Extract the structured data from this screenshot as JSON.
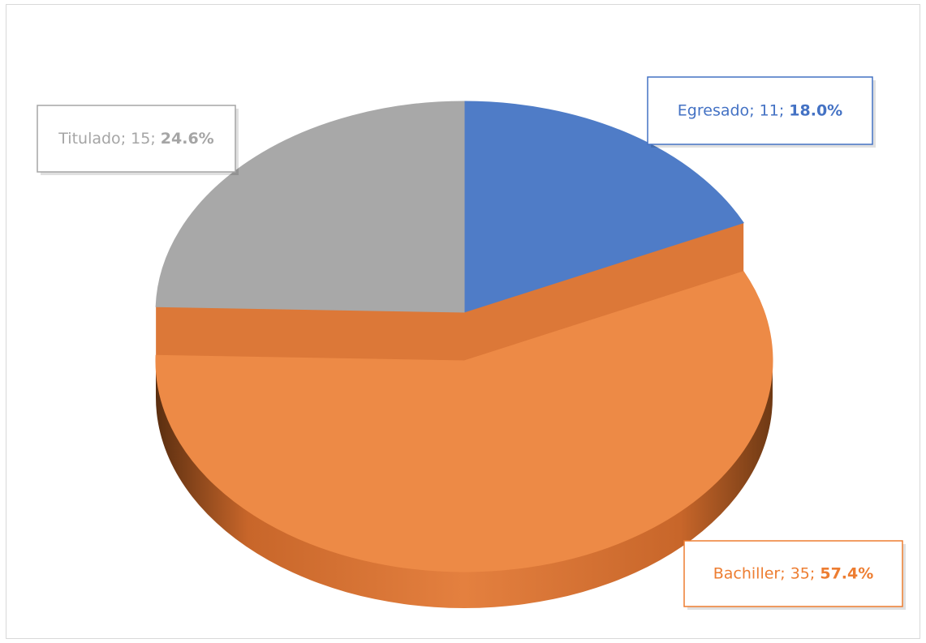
{
  "chart_data": {
    "type": "pie",
    "categories": [
      "Egresado",
      "Bachiller",
      "Titulado"
    ],
    "values": [
      11,
      35,
      15
    ],
    "percent_labels": [
      "18.0%",
      "57.4%",
      "24.6%"
    ],
    "label_separator": "; ",
    "colors": [
      "#4f7cc7",
      "#ed8a46",
      "#a8a8a8"
    ],
    "label_colors": [
      "#4472c4",
      "#ed7d31",
      "#a5a5a5"
    ],
    "exploded": 1
  }
}
